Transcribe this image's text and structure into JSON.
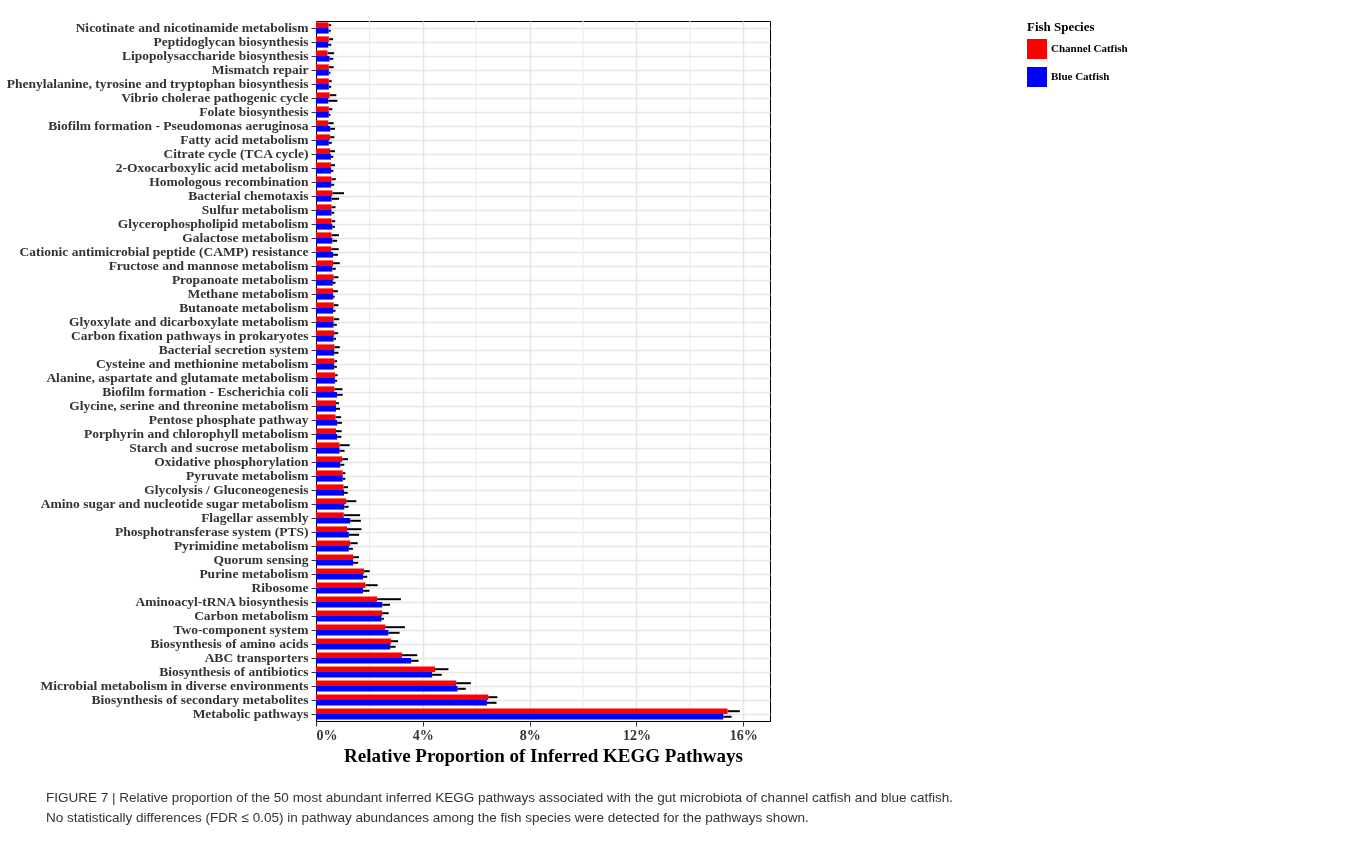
{
  "chart_data": {
    "type": "bar",
    "orientation": "horizontal",
    "xlabel": "Relative Proportion of Inferred KEGG Pathways",
    "legend_title": "Fish Species",
    "legend": "right",
    "grid": true,
    "categories": [
      "Nicotinate and nicotinamide metabolism",
      "Peptidoglycan biosynthesis",
      "Lipopolysaccharide biosynthesis",
      "Mismatch repair",
      "Phenylalanine, tyrosine and tryptophan biosynthesis",
      "Vibrio cholerae pathogenic cycle",
      "Folate biosynthesis",
      "Biofilm formation - Pseudomonas aeruginosa",
      "Fatty acid metabolism",
      "Citrate cycle (TCA cycle)",
      "2-Oxocarboxylic acid metabolism",
      "Homologous recombination",
      "Bacterial chemotaxis",
      "Sulfur metabolism",
      "Glycerophospholipid metabolism",
      "Galactose metabolism",
      "Cationic antimicrobial peptide (CAMP) resistance",
      "Fructose and mannose metabolism",
      "Propanoate metabolism",
      "Methane metabolism",
      "Butanoate metabolism",
      "Glyoxylate and dicarboxylate metabolism",
      "Carbon fixation pathways in prokaryotes",
      "Bacterial secretion system",
      "Cysteine and methionine metabolism",
      "Alanine, aspartate and glutamate metabolism",
      "Biofilm formation - Escherichia coli",
      "Glycine, serine and threonine metabolism",
      "Pentose phosphate pathway",
      "Porphyrin and chlorophyll metabolism",
      "Starch and sucrose metabolism",
      "Oxidative phosphorylation",
      "Pyruvate metabolism",
      "Glycolysis / Gluconeogenesis",
      "Amino sugar and nucleotide sugar metabolism",
      "Flagellar assembly",
      "Phosphotransferase system (PTS)",
      "Pyrimidine metabolism",
      "Quorum sensing",
      "Purine metabolism",
      "Ribosome",
      "Aminoacyl-tRNA biosynthesis",
      "Carbon metabolism",
      "Two-component system",
      "Biosynthesis of amino acids",
      "ABC transporters",
      "Biosynthesis of antibiotics",
      "Microbial metabolism in diverse environments",
      "Biosynthesis of secondary metabolites",
      "Metabolic pathways"
    ],
    "series": [
      {
        "name": "Channel Catfish",
        "color": "#ff0000",
        "values": [
          0.47,
          0.48,
          0.43,
          0.48,
          0.48,
          0.51,
          0.48,
          0.46,
          0.53,
          0.53,
          0.56,
          0.58,
          0.61,
          0.58,
          0.58,
          0.58,
          0.57,
          0.64,
          0.66,
          0.64,
          0.66,
          0.66,
          0.68,
          0.69,
          0.69,
          0.71,
          0.69,
          0.75,
          0.73,
          0.75,
          0.88,
          0.98,
          1.0,
          1.03,
          1.13,
          1.04,
          1.16,
          1.28,
          1.39,
          1.8,
          1.85,
          2.29,
          2.48,
          2.59,
          2.81,
          3.22,
          4.46,
          5.25,
          6.45,
          15.41
        ],
        "errors": [
          [
            0.47,
            0.57
          ],
          [
            0.48,
            0.64
          ],
          [
            0.43,
            0.68
          ],
          [
            0.48,
            0.66
          ],
          [
            0.48,
            0.59
          ],
          [
            0.51,
            0.76
          ],
          [
            0.48,
            0.61
          ],
          [
            0.46,
            0.66
          ],
          [
            0.53,
            0.69
          ],
          [
            0.53,
            0.71
          ],
          [
            0.56,
            0.71
          ],
          [
            0.58,
            0.74
          ],
          [
            0.61,
            1.05
          ],
          [
            0.58,
            0.73
          ],
          [
            0.58,
            0.72
          ],
          [
            0.58,
            0.86
          ],
          [
            0.57,
            0.85
          ],
          [
            0.64,
            0.89
          ],
          [
            0.66,
            0.84
          ],
          [
            0.64,
            0.82
          ],
          [
            0.66,
            0.84
          ],
          [
            0.66,
            0.87
          ],
          [
            0.68,
            0.83
          ],
          [
            0.69,
            0.89
          ],
          [
            0.69,
            0.79
          ],
          [
            0.71,
            0.81
          ],
          [
            0.69,
            0.99
          ],
          [
            0.75,
            0.86
          ],
          [
            0.73,
            0.94
          ],
          [
            0.75,
            0.96
          ],
          [
            0.88,
            1.26
          ],
          [
            0.98,
            1.2
          ],
          [
            1.0,
            1.1
          ],
          [
            1.03,
            1.2
          ],
          [
            1.13,
            1.51
          ],
          [
            1.04,
            1.65
          ],
          [
            1.16,
            1.7
          ],
          [
            1.28,
            1.56
          ],
          [
            1.39,
            1.61
          ],
          [
            1.8,
            2.01
          ],
          [
            1.85,
            2.31
          ],
          [
            2.29,
            3.18
          ],
          [
            2.48,
            2.72
          ],
          [
            2.59,
            3.33
          ],
          [
            2.81,
            3.07
          ],
          [
            3.22,
            3.79
          ],
          [
            4.46,
            4.96
          ],
          [
            5.25,
            5.8
          ],
          [
            6.45,
            6.79
          ],
          [
            15.41,
            15.87
          ]
        ]
      },
      {
        "name": "Blue Catfish",
        "color": "#0000ff",
        "values": [
          0.47,
          0.46,
          0.51,
          0.48,
          0.48,
          0.46,
          0.48,
          0.53,
          0.48,
          0.56,
          0.56,
          0.57,
          0.58,
          0.58,
          0.61,
          0.61,
          0.64,
          0.61,
          0.63,
          0.64,
          0.64,
          0.66,
          0.66,
          0.68,
          0.68,
          0.71,
          0.79,
          0.75,
          0.79,
          0.79,
          0.88,
          0.91,
          1.0,
          1.05,
          1.06,
          1.28,
          1.23,
          1.23,
          1.39,
          1.76,
          1.76,
          2.48,
          2.45,
          2.71,
          2.78,
          3.56,
          4.35,
          5.3,
          6.4,
          15.25
        ],
        "errors": [
          [
            0.47,
            0.55
          ],
          [
            0.46,
            0.57
          ],
          [
            0.51,
            0.65
          ],
          [
            0.48,
            0.54
          ],
          [
            0.48,
            0.57
          ],
          [
            0.46,
            0.8
          ],
          [
            0.48,
            0.54
          ],
          [
            0.53,
            0.71
          ],
          [
            0.48,
            0.59
          ],
          [
            0.56,
            0.65
          ],
          [
            0.56,
            0.65
          ],
          [
            0.57,
            0.68
          ],
          [
            0.58,
            0.86
          ],
          [
            0.58,
            0.68
          ],
          [
            0.61,
            0.71
          ],
          [
            0.61,
            0.79
          ],
          [
            0.64,
            0.82
          ],
          [
            0.61,
            0.74
          ],
          [
            0.63,
            0.73
          ],
          [
            0.64,
            0.7
          ],
          [
            0.64,
            0.73
          ],
          [
            0.66,
            0.78
          ],
          [
            0.66,
            0.75
          ],
          [
            0.68,
            0.84
          ],
          [
            0.68,
            0.78
          ],
          [
            0.71,
            0.79
          ],
          [
            0.79,
            1.0
          ],
          [
            0.75,
            0.9
          ],
          [
            0.79,
            0.97
          ],
          [
            0.79,
            0.95
          ],
          [
            0.88,
            1.07
          ],
          [
            0.91,
            1.06
          ],
          [
            1.0,
            1.1
          ],
          [
            1.05,
            1.19
          ],
          [
            1.06,
            1.22
          ],
          [
            1.28,
            1.68
          ],
          [
            1.23,
            1.61
          ],
          [
            1.23,
            1.38
          ],
          [
            1.39,
            1.58
          ],
          [
            1.76,
            1.92
          ],
          [
            1.76,
            2.0
          ],
          [
            2.48,
            2.77
          ],
          [
            2.45,
            2.54
          ],
          [
            2.71,
            3.13
          ],
          [
            2.78,
            2.98
          ],
          [
            3.56,
            3.84
          ],
          [
            4.35,
            4.71
          ],
          [
            5.3,
            5.61
          ],
          [
            6.4,
            6.76
          ],
          [
            15.25,
            15.56
          ]
        ]
      }
    ],
    "xlim": [
      0,
      17
    ],
    "xticks": [
      {
        "value": 0,
        "label": "0%"
      },
      {
        "value": 4,
        "label": "4%"
      },
      {
        "value": 8,
        "label": "8%"
      },
      {
        "value": 12,
        "label": "12%"
      },
      {
        "value": 16,
        "label": "16%"
      }
    ],
    "annotations": [
      "FIGURE 7 | Relative proportion of the 50 most abundant inferred KEGG pathways associated with the gut microbiota of channel catfish and blue catfish. No statistically differences (FDR ≤ 0.05) in pathway abundances among the fish species were detected for the pathways shown."
    ]
  }
}
